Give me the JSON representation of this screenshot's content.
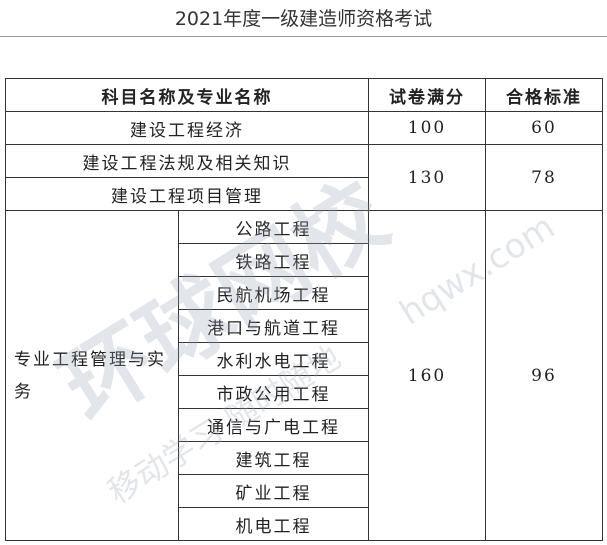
{
  "title": "2021年度一级建造师资格考试",
  "table": {
    "headers": [
      "科目名称及专业名称",
      "试卷满分",
      "合格标准"
    ],
    "rows": [
      {
        "subject": "建设工程经济",
        "full": "100",
        "pass": "60"
      },
      {
        "subject": "建设工程法规及相关知识",
        "full": "130",
        "pass": "78"
      },
      {
        "subject": "建设工程项目管理"
      }
    ],
    "practice": {
      "subject": "专业工程管理与实务",
      "full": "160",
      "pass": "96",
      "specialties": [
        "公路工程",
        "铁路工程",
        "民航机场工程",
        "港口与航道工程",
        "水利水电工程",
        "市政公用工程",
        "通信与广电工程",
        "建筑工程",
        "矿业工程",
        "机电工程"
      ]
    }
  },
  "watermark": {
    "logo": "环球网校",
    "url": "hqwx.com",
    "slogan": "移动学习 随时随地"
  }
}
